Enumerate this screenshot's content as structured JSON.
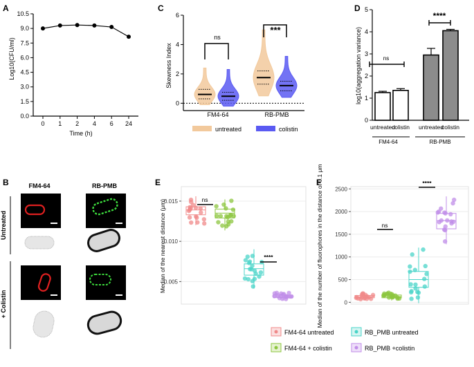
{
  "panels": {
    "A": {
      "label": "A"
    },
    "B": {
      "label": "B",
      "col_labels": [
        "FM4-64",
        "RB-PMB"
      ],
      "row_labels": [
        "Untreated",
        "+ Colistin"
      ]
    },
    "C": {
      "label": "C"
    },
    "D": {
      "label": "D"
    },
    "E": {
      "label": "E"
    },
    "F": {
      "label": "F"
    }
  },
  "legend_C": {
    "items": [
      {
        "label": "untreated",
        "color": "#f2c99c"
      },
      {
        "label": "colistin",
        "color": "#5a5af2"
      }
    ]
  },
  "legend_EF": {
    "items": [
      {
        "label": "FM4-64 untreated",
        "color": "#f08a8a"
      },
      {
        "label": "FM4-64 + colistin",
        "color": "#8cc63f"
      },
      {
        "label": "RB_PMB untreated",
        "color": "#49d4c8"
      },
      {
        "label": "RB_PMB +colistin",
        "color": "#c08de8"
      }
    ]
  },
  "chart_data": [
    {
      "id": "A",
      "type": "line",
      "x": [
        "0",
        "1",
        "2",
        "4",
        "6",
        "24"
      ],
      "y": [
        9.0,
        9.3,
        9.35,
        9.3,
        9.15,
        8.15
      ],
      "xlabel": "Time (h)",
      "ylabel": "Log10(CFU/ml)",
      "ylim": [
        0,
        10.5
      ],
      "yticks": [
        "0.0",
        "1.5",
        "3.0",
        "4.5",
        "6.0",
        "7.5",
        "9.0",
        "10.5"
      ]
    },
    {
      "id": "C",
      "type": "violin",
      "groups": [
        "FM4-64",
        "RB-PMB"
      ],
      "series": [
        {
          "name": "untreated",
          "color": "#f2c99c",
          "medians": [
            0.6,
            1.75
          ],
          "q1": [
            0.3,
            1.3
          ],
          "q3": [
            0.95,
            2.2
          ]
        },
        {
          "name": "colistin",
          "color": "#5a5af2",
          "medians": [
            0.48,
            1.2
          ],
          "q1": [
            0.2,
            0.85
          ],
          "q3": [
            0.75,
            1.5
          ]
        }
      ],
      "ylabel": "Skewness Index",
      "ylim": [
        -0.5,
        6
      ],
      "yticks": [
        "0",
        "2",
        "4",
        "6"
      ],
      "annotations": [
        "ns",
        "***"
      ]
    },
    {
      "id": "D",
      "type": "bar",
      "categories": [
        "untreated",
        "colistin",
        "untreated",
        "colistin"
      ],
      "groups": [
        "FM4-64",
        "RB-PMB"
      ],
      "values": [
        1.25,
        1.35,
        2.95,
        4.05
      ],
      "errors": [
        0.06,
        0.08,
        0.3,
        0.06
      ],
      "ylabel": "log10(aggregation variance)",
      "ylim": [
        0,
        5
      ],
      "yticks": [
        "0",
        "1",
        "2",
        "3",
        "4",
        "5"
      ],
      "annotations": [
        "ns",
        "****"
      ]
    },
    {
      "id": "E",
      "type": "boxplot",
      "groups": [
        "FM4-64 untreated",
        "FM4-64 + colistin",
        "RB_PMB untreated",
        "RB_PMB +colistin"
      ],
      "medians": [
        0.0139,
        0.0135,
        0.0066,
        0.0031
      ],
      "q1": [
        0.0133,
        0.0129,
        0.0058,
        0.003
      ],
      "q3": [
        0.0143,
        0.014,
        0.0072,
        0.0033
      ],
      "ylabel": "Median of the nearest distance (μm)",
      "ylim": [
        0.0022,
        0.0168
      ],
      "yticks": [
        "0.005",
        "0.010",
        "0.015"
      ],
      "annotations": [
        "ns",
        "****"
      ]
    },
    {
      "id": "F",
      "type": "boxplot",
      "groups": [
        "FM4-64 untreated",
        "FM4-64 + colistin",
        "RB_PMB untreated",
        "RB_PMB +colistin"
      ],
      "medians": [
        120,
        125,
        500,
        1800
      ],
      "q1": [
        100,
        100,
        330,
        1620
      ],
      "q3": [
        150,
        160,
        680,
        1960
      ],
      "ylabel": "Median of the number of fluorophores in the distance of 0.1 μm",
      "ylim": [
        -40,
        2550
      ],
      "yticks": [
        "0",
        "500",
        "1000",
        "1500",
        "2000",
        "2500"
      ],
      "annotations": [
        "ns",
        "****"
      ]
    }
  ]
}
